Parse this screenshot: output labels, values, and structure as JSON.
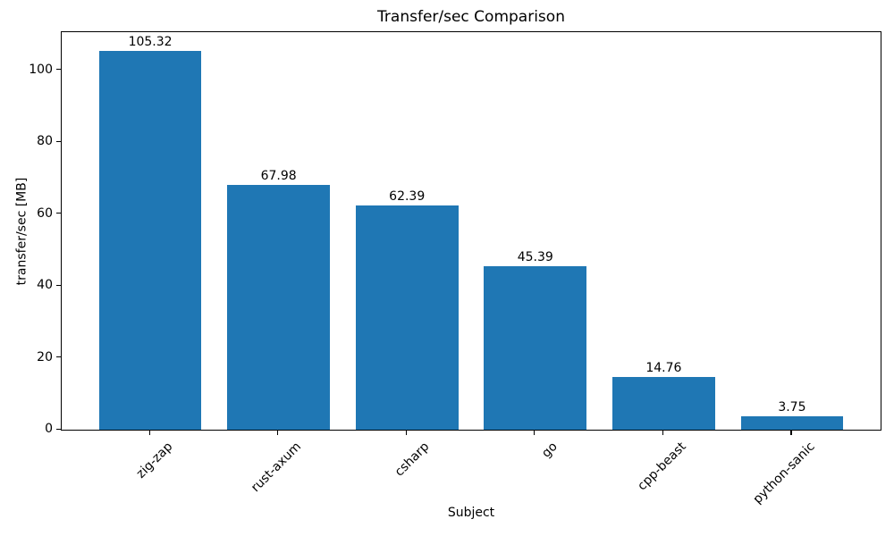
{
  "chart_data": {
    "type": "bar",
    "title": "Transfer/sec Comparison",
    "xlabel": "Subject",
    "ylabel": "transfer/sec [MB]",
    "categories": [
      "zig-zap",
      "rust-axum",
      "csharp",
      "go",
      "cpp-beast",
      "python-sanic"
    ],
    "values": [
      105.32,
      67.98,
      62.39,
      45.39,
      14.76,
      3.75
    ],
    "bar_labels": [
      "105.32",
      "67.98",
      "62.39",
      "45.39",
      "14.76",
      "3.75"
    ],
    "yticks": [
      0,
      20,
      40,
      60,
      80,
      100
    ],
    "ytick_labels": [
      "0",
      "20",
      "40",
      "60",
      "80",
      "100"
    ],
    "ylim": [
      0,
      110.6
    ],
    "bar_color": "#1f77b4",
    "bar_width_ratio": 0.8,
    "grid": false,
    "legend": "none",
    "text_color": "#000000",
    "spine_color": "#000000"
  }
}
